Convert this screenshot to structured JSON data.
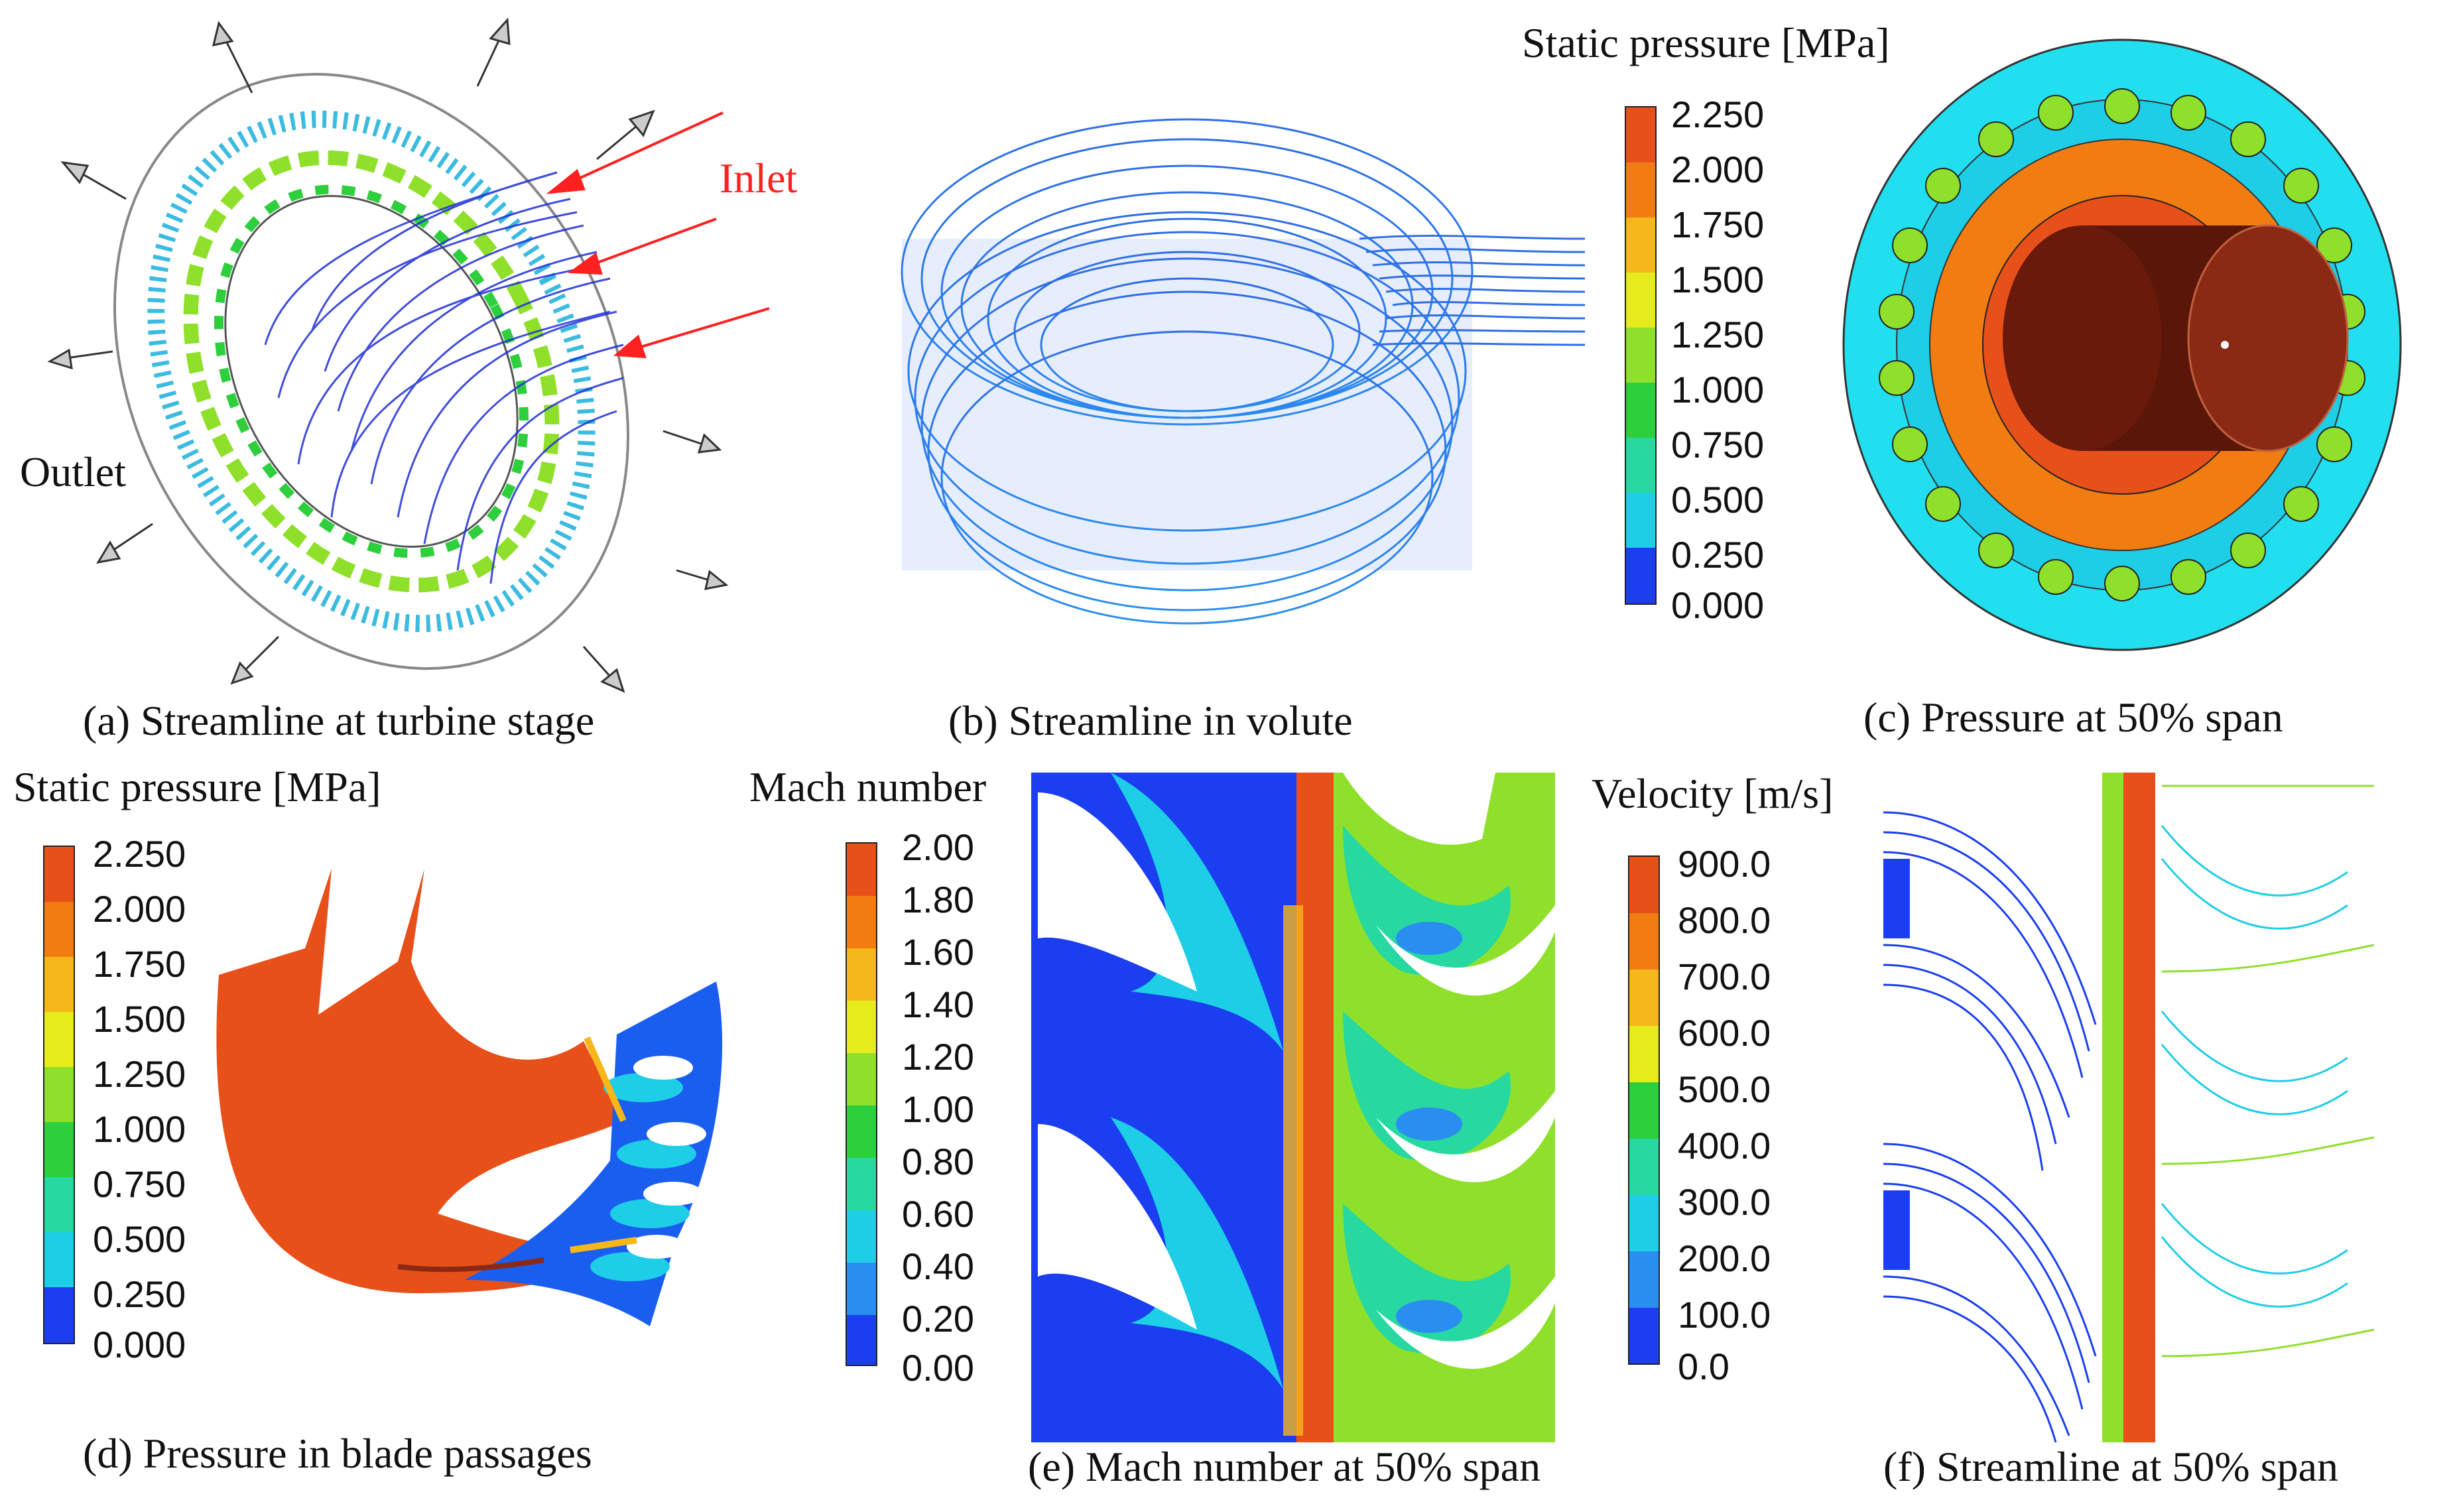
{
  "panels": {
    "a": {
      "caption": "(a) Streamline at turbine stage",
      "inlet_label": "Inlet",
      "outlet_label": "Outlet"
    },
    "b": {
      "caption": "(b)  Streamline in volute"
    },
    "c": {
      "caption": "(c) Pressure at 50% span"
    },
    "d": {
      "caption": "(d) Pressure in blade passages"
    },
    "e": {
      "caption": "(e) Mach number at 50% span"
    },
    "f": {
      "caption": "(f) Streamline at 50% span"
    }
  },
  "colorbars": {
    "pressure_top": {
      "title": "Static pressure [MPa]",
      "labels": [
        "2.250",
        "2.000",
        "1.750",
        "1.500",
        "1.250",
        "1.000",
        "0.750",
        "0.500",
        "0.250",
        "0.000"
      ]
    },
    "pressure_bottom": {
      "title": "Static pressure [MPa]",
      "labels": [
        "2.250",
        "2.000",
        "1.750",
        "1.500",
        "1.250",
        "1.000",
        "0.750",
        "0.500",
        "0.250",
        "0.000"
      ]
    },
    "mach": {
      "title": "Mach number",
      "labels": [
        "2.00",
        "1.80",
        "1.60",
        "1.40",
        "1.20",
        "1.00",
        "0.80",
        "0.60",
        "0.40",
        "0.20",
        "0.00"
      ]
    },
    "velocity": {
      "title": "Velocity [m/s]",
      "labels": [
        "900.0",
        "800.0",
        "700.0",
        "600.0",
        "500.0",
        "400.0",
        "300.0",
        "200.0",
        "100.0",
        "0.0"
      ]
    }
  },
  "colors": {
    "scale9": [
      "#e8501a",
      "#f17c12",
      "#f6b71a",
      "#e6ec1c",
      "#8fe02a",
      "#2ecf3c",
      "#27d9a0",
      "#1ecde6",
      "#2a8ef0",
      "#1a3ef0"
    ],
    "scale10": [
      "#e8501a",
      "#f17c12",
      "#f6b71a",
      "#e6ec1c",
      "#8fe02a",
      "#2ecf3c",
      "#27d9a0",
      "#1ecde6",
      "#2ab0f0",
      "#2a6ef0",
      "#1a3ef0"
    ],
    "inlet_arrow": "#ff2020",
    "volute_stream": "#2f6ee6",
    "rotor_blue": "#1f2fd6"
  }
}
